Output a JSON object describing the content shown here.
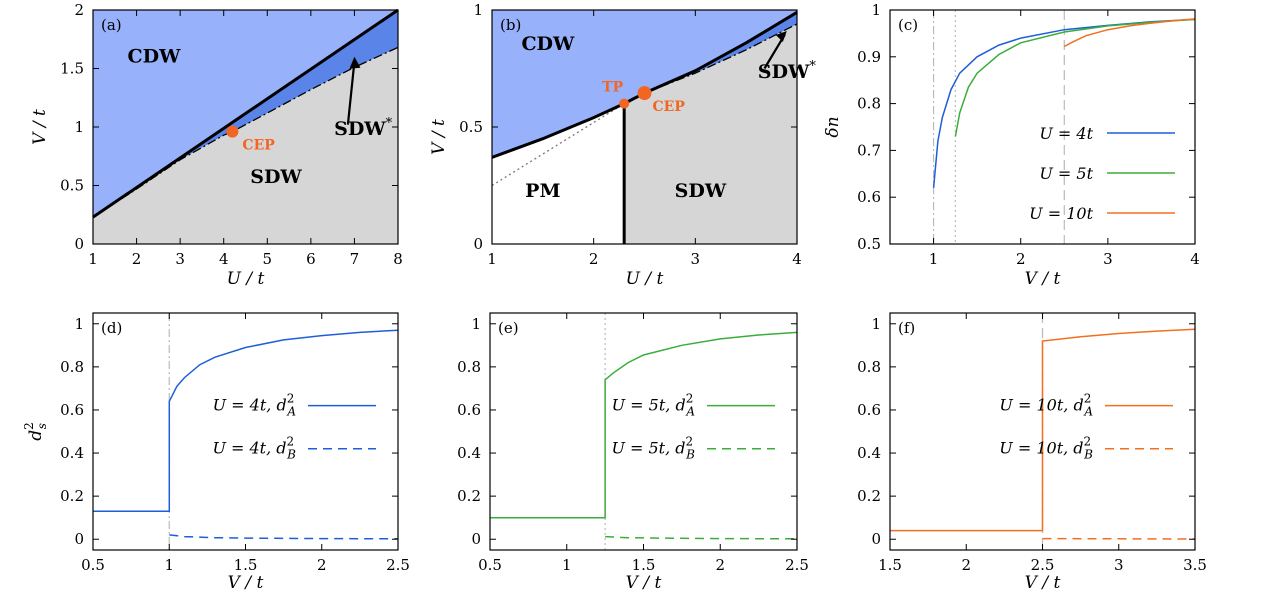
{
  "colors": {
    "cdw": "#97b1fa",
    "sdw_star": "#5a84e8",
    "sdw": "#d6d6d6",
    "pm": "#ffffff",
    "u4": "#1f5fd6",
    "u5": "#3aae3a",
    "u10": "#f07020",
    "marker": "#f26522"
  },
  "chart_data": [
    {
      "panel": "a",
      "panel_label": "(a)",
      "type": "area",
      "xlabel": "U/t",
      "ylabel": "V/t",
      "xlim": [
        1,
        8
      ],
      "ylim": [
        0,
        2
      ],
      "xticks": [
        1,
        2,
        3,
        4,
        5,
        6,
        7,
        8
      ],
      "yticks": [
        0,
        0.5,
        1,
        1.5,
        2
      ],
      "ytick_labels": [
        "0",
        "0.5",
        "1",
        "1.5",
        "2"
      ],
      "regions": [
        {
          "label": "CDW",
          "at": [
            2.4,
            1.55
          ]
        },
        {
          "label": "SDW",
          "at": [
            5.2,
            0.52
          ]
        },
        {
          "label": "SDW*",
          "at": [
            7.2,
            0.93
          ]
        }
      ],
      "cdw_boundary": {
        "x": [
          1,
          8
        ],
        "y": [
          0.23,
          2.0
        ]
      },
      "sdw_boundary": {
        "x": [
          1,
          2,
          3,
          4,
          4.2,
          5,
          6,
          7,
          8
        ],
        "y": [
          0.23,
          0.47,
          0.72,
          0.93,
          0.96,
          1.12,
          1.32,
          1.51,
          1.68
        ]
      },
      "markers": [
        {
          "label": "CEP",
          "x": 4.2,
          "y": 0.96
        }
      ]
    },
    {
      "panel": "b",
      "panel_label": "(b)",
      "type": "area",
      "xlabel": "U/t",
      "ylabel": "V/t",
      "xlim": [
        1,
        4
      ],
      "ylim": [
        0,
        1
      ],
      "xticks": [
        1,
        2,
        3,
        4
      ],
      "yticks": [
        0,
        0.5,
        1
      ],
      "ytick_labels": [
        "0",
        "0.5",
        "1"
      ],
      "regions": [
        {
          "label": "CDW",
          "at": [
            1.55,
            0.83
          ]
        },
        {
          "label": "PM",
          "at": [
            1.5,
            0.2
          ]
        },
        {
          "label": "SDW",
          "at": [
            3.05,
            0.2
          ]
        },
        {
          "label": "SDW*",
          "at": [
            3.9,
            0.71
          ]
        }
      ],
      "cdw_boundary": {
        "x": [
          1,
          1.5,
          2,
          2.3,
          2.5,
          3,
          3.5,
          4
        ],
        "y": [
          0.37,
          0.45,
          0.54,
          0.6,
          0.645,
          0.74,
          0.86,
          0.99
        ]
      },
      "sdw_boundary": {
        "x": [
          2.5,
          3,
          3.5,
          4
        ],
        "y": [
          0.645,
          0.73,
          0.83,
          0.94
        ]
      },
      "pm_sdw_line": {
        "x": 2.3,
        "y": [
          0,
          0.6
        ]
      },
      "dotted_extension": {
        "x": [
          1,
          2.3
        ],
        "y": [
          0.25,
          0.6
        ]
      },
      "markers": [
        {
          "label": "TP",
          "x": 2.3,
          "y": 0.6
        },
        {
          "label": "CEP",
          "x": 2.5,
          "y": 0.645
        }
      ]
    },
    {
      "panel": "c",
      "panel_label": "(c)",
      "type": "line",
      "xlabel": "V/t",
      "ylabel": "δn",
      "xlim": [
        0.5,
        4
      ],
      "ylim": [
        0.5,
        1
      ],
      "xticks": [
        1,
        2,
        3,
        4
      ],
      "yticks": [
        0.5,
        0.6,
        0.7,
        0.8,
        0.9,
        1
      ],
      "ytick_labels": [
        "0.5",
        "0.6",
        "0.7",
        "0.8",
        "0.9",
        "1"
      ],
      "legend_position": "bottom-right",
      "series": [
        {
          "name": "U = 4t",
          "color_key": "u4",
          "x": [
            1,
            1.05,
            1.1,
            1.2,
            1.3,
            1.5,
            1.75,
            2,
            2.5,
            3,
            3.5,
            4
          ],
          "y": [
            0.62,
            0.72,
            0.77,
            0.83,
            0.865,
            0.9,
            0.925,
            0.94,
            0.958,
            0.967,
            0.975,
            0.98
          ],
          "vline": 1
        },
        {
          "name": "U = 5t",
          "color_key": "u5",
          "x": [
            1.25,
            1.3,
            1.4,
            1.5,
            1.75,
            2,
            2.5,
            3,
            3.5,
            4
          ],
          "y": [
            0.73,
            0.78,
            0.835,
            0.865,
            0.905,
            0.93,
            0.953,
            0.966,
            0.974,
            0.98
          ],
          "vline": 1.25
        },
        {
          "name": "U = 10t",
          "color_key": "u10",
          "x": [
            2.5,
            2.6,
            2.75,
            3,
            3.25,
            3.5,
            3.75,
            4
          ],
          "y": [
            0.922,
            0.932,
            0.945,
            0.958,
            0.966,
            0.972,
            0.977,
            0.981
          ],
          "vline": 2.5
        }
      ]
    },
    {
      "panel": "d",
      "panel_label": "(d)",
      "type": "line",
      "xlabel": "V/t",
      "ylabel": "d_s^2",
      "xlim": [
        0.5,
        2.5
      ],
      "ylim": [
        -0.05,
        1.05
      ],
      "xticks": [
        0.5,
        1,
        1.5,
        2,
        2.5
      ],
      "yticks": [
        0,
        0.2,
        0.4,
        0.6,
        0.8,
        1
      ],
      "ytick_labels": [
        "0",
        "0.2",
        "0.4",
        "0.6",
        "0.8",
        "1"
      ],
      "vline": 1,
      "legend_position": "center-right",
      "series": [
        {
          "name": "U = 4t, d_A^2",
          "color_key": "u4",
          "dash": "solid",
          "x": [
            0.5,
            1,
            1,
            1.05,
            1.1,
            1.2,
            1.3,
            1.5,
            1.75,
            2,
            2.25,
            2.5
          ],
          "y": [
            0.13,
            0.13,
            0.64,
            0.71,
            0.75,
            0.81,
            0.845,
            0.89,
            0.925,
            0.945,
            0.96,
            0.97
          ]
        },
        {
          "name": "U = 4t, d_B^2",
          "color_key": "u4",
          "dash": "dashed",
          "x": [
            1,
            1.1,
            1.3,
            1.5,
            2,
            2.5
          ],
          "y": [
            0.02,
            0.012,
            0.007,
            0.005,
            0.003,
            0.002
          ]
        }
      ]
    },
    {
      "panel": "e",
      "panel_label": "(e)",
      "type": "line",
      "xlabel": "V/t",
      "ylabel": "",
      "xlim": [
        0.5,
        2.5
      ],
      "ylim": [
        -0.05,
        1.05
      ],
      "xticks": [
        0.5,
        1,
        1.5,
        2,
        2.5
      ],
      "yticks": [
        0,
        0.2,
        0.4,
        0.6,
        0.8,
        1
      ],
      "ytick_labels": [
        "0",
        "0.2",
        "0.4",
        "0.6",
        "0.8",
        "1"
      ],
      "vline": 1.25,
      "legend_position": "center-right",
      "series": [
        {
          "name": "U = 5t, d_A^2",
          "color_key": "u5",
          "dash": "solid",
          "x": [
            0.5,
            1.25,
            1.25,
            1.3,
            1.4,
            1.5,
            1.75,
            2,
            2.25,
            2.5
          ],
          "y": [
            0.1,
            0.1,
            0.74,
            0.77,
            0.82,
            0.855,
            0.9,
            0.93,
            0.948,
            0.96
          ]
        },
        {
          "name": "U = 5t, d_B^2",
          "color_key": "u5",
          "dash": "dashed",
          "x": [
            1.25,
            1.4,
            1.6,
            2,
            2.5
          ],
          "y": [
            0.012,
            0.007,
            0.005,
            0.003,
            0.002
          ]
        }
      ]
    },
    {
      "panel": "f",
      "panel_label": "(f)",
      "type": "line",
      "xlabel": "V/t",
      "ylabel": "",
      "xlim": [
        1.5,
        3.5
      ],
      "ylim": [
        -0.05,
        1.05
      ],
      "xticks": [
        1.5,
        2,
        2.5,
        3,
        3.5
      ],
      "yticks": [
        0,
        0.2,
        0.4,
        0.6,
        0.8,
        1
      ],
      "ytick_labels": [
        "0",
        "0.2",
        "0.4",
        "0.6",
        "0.8",
        "1"
      ],
      "vline": 2.5,
      "legend_position": "center-right",
      "series": [
        {
          "name": "U = 10t, d_A^2",
          "color_key": "u10",
          "dash": "solid",
          "x": [
            1.5,
            2.5,
            2.5,
            2.75,
            3,
            3.25,
            3.5
          ],
          "y": [
            0.04,
            0.04,
            0.92,
            0.94,
            0.955,
            0.966,
            0.975
          ]
        },
        {
          "name": "U = 10t, d_B^2",
          "color_key": "u10",
          "dash": "dashed",
          "x": [
            2.5,
            3,
            3.5
          ],
          "y": [
            0.003,
            0.002,
            0.001
          ]
        }
      ]
    }
  ]
}
